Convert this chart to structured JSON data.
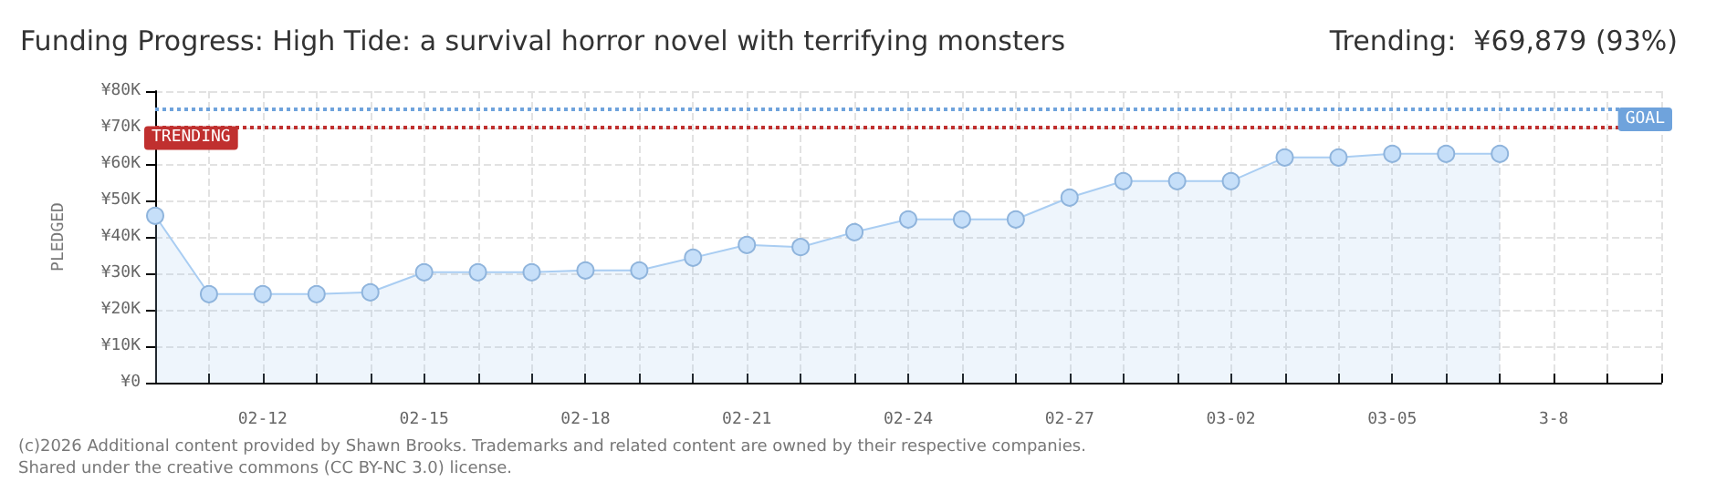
{
  "chart_data": {
    "type": "area",
    "title": "Funding Progress: High Tide: a survival horror novel with terrifying monsters",
    "subtitle": "Trending:  ¥69,879 (93%)",
    "ylabel": "PLEDGED",
    "categories": [
      null,
      null,
      "02-12",
      null,
      null,
      "02-15",
      null,
      null,
      "02-18",
      null,
      null,
      "02-21",
      null,
      null,
      "02-24",
      null,
      null,
      "02-27",
      null,
      null,
      "03-02",
      null,
      null,
      "03-05",
      null,
      null,
      "3-8",
      null,
      null
    ],
    "series": [
      {
        "color": "#a9cdf2",
        "values": [
          45.8,
          24.3,
          24.3,
          24.3,
          24.8,
          30.3,
          30.3,
          30.3,
          30.8,
          30.8,
          34.3,
          37.8,
          37.2,
          41.3,
          44.8,
          44.8,
          44.8,
          50.8,
          55.3,
          55.3,
          55.3,
          61.8,
          61.8,
          62.8,
          62.8,
          62.8,
          null,
          null,
          null
        ]
      }
    ],
    "ylim": [
      0,
      80
    ],
    "yticks": [
      {
        "value": 0,
        "label": "¥0"
      },
      {
        "value": 10,
        "label": "¥10K"
      },
      {
        "value": 20,
        "label": "¥20K"
      },
      {
        "value": 30,
        "label": "¥30K"
      },
      {
        "value": 40,
        "label": "¥40K"
      },
      {
        "value": 50,
        "label": "¥50K"
      },
      {
        "value": 60,
        "label": "¥60K"
      },
      {
        "value": 70,
        "label": "¥70K"
      },
      {
        "value": 80,
        "label": "¥80K"
      }
    ],
    "ref_lines": [
      {
        "axis": "y",
        "value": 75,
        "label": "GOAL",
        "color": "#6fa3dc",
        "line_style": "dotted"
      },
      {
        "axis": "y",
        "value": 69.879,
        "label": "TRENDING",
        "color": "#c0302f",
        "line_style": "dotted"
      }
    ],
    "annotations": [
      "(c)2026 Additional content provided by Shawn Brooks. Trademarks and related content are owned by their respective companies.",
      "Shared under the creative commons (CC BY-NC 3.0) license."
    ],
    "grid": true,
    "marker": "circle"
  }
}
